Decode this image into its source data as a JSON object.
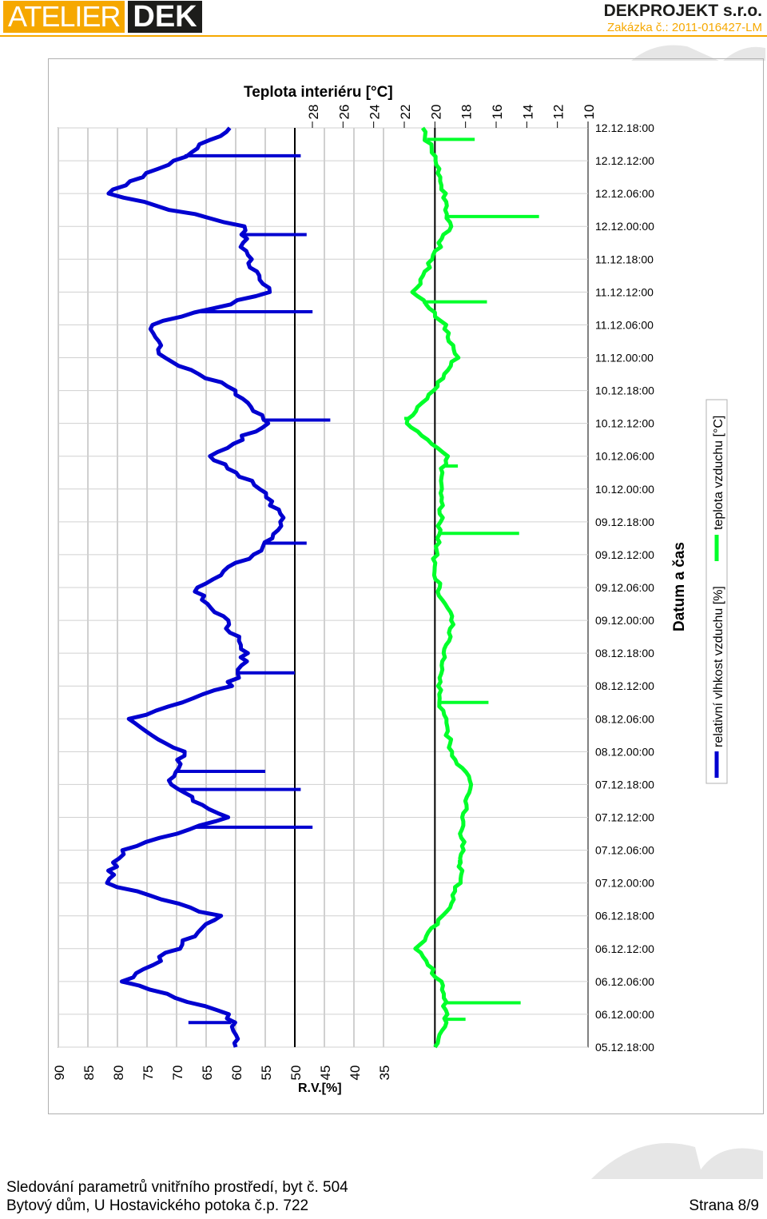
{
  "header": {
    "logo_left": "ATELIER",
    "logo_right": "DEK",
    "company": "DEKPROJEKT s.r.o.",
    "order_number": "Zakázka č.: 2011-016427-LM",
    "accent_color": "#f6a800",
    "dark_color": "#1d1d1b"
  },
  "footer": {
    "line1": "Sledování parametrů vnitřního prostředí, byt č. 504",
    "line2": "Bytový dům, U Hostavického potoka č.p. 722",
    "page": "Strana 8/9"
  },
  "chart_data": {
    "type": "line",
    "orientation": "rotated-90",
    "title": "Teplota interiéru [°C]",
    "xlabel": "Datum a čas",
    "ylabel_left": "R.V.[%]",
    "categories": [
      "05.12.18:00",
      "06.12.00:00",
      "06.12.06:00",
      "06.12.12:00",
      "06.12.18:00",
      "07.12.00:00",
      "07.12.06:00",
      "07.12.12:00",
      "07.12.18:00",
      "08.12.00:00",
      "08.12.06:00",
      "08.12.12:00",
      "08.12.18:00",
      "09.12.00:00",
      "09.12.06:00",
      "09.12.12:00",
      "09.12.18:00",
      "10.12.00:00",
      "10.12.06:00",
      "10.12.12:00",
      "10.12.18:00",
      "11.12.00:00",
      "11.12.06:00",
      "11.12.12:00",
      "11.12.18:00",
      "12.12.00:00",
      "12.12.06:00",
      "12.12.12:00",
      "12.12.18:00"
    ],
    "rh_axis": {
      "ticks": [
        90,
        85,
        80,
        75,
        70,
        65,
        60,
        55,
        50,
        45,
        40,
        35
      ],
      "range": [
        90,
        35
      ]
    },
    "temp_axis": {
      "ticks": [
        28,
        26,
        24,
        22,
        20,
        18,
        16,
        14,
        12,
        10
      ],
      "range": [
        28,
        10
      ]
    },
    "reference_lines": {
      "rh": 50,
      "temperature": 20
    },
    "grid": true,
    "legend_position": "right",
    "series": [
      {
        "name": "relativní vlhkost vzduchu [%]",
        "axis": "rh",
        "color": "#0000d0",
        "values": [
          60,
          61,
          79,
          70,
          63,
          82,
          79,
          62,
          71,
          69,
          78,
          61,
          58,
          62,
          67,
          57,
          52,
          56,
          64,
          55,
          60,
          72,
          74,
          54,
          58,
          59,
          82,
          70,
          61
        ],
        "spikes": [
          [
            0.75,
            68
          ],
          [
            6.7,
            47
          ],
          [
            7.85,
            49
          ],
          [
            8.4,
            55
          ],
          [
            11.4,
            50
          ],
          [
            15.35,
            48
          ],
          [
            19.1,
            44
          ],
          [
            22.4,
            47
          ],
          [
            24.75,
            48
          ],
          [
            27.15,
            49
          ]
        ]
      },
      {
        "name": "teplota vzduchu [°C]",
        "axis": "temperature",
        "color": "#00ff2a",
        "values": [
          20.0,
          19.2,
          19.7,
          21.2,
          19.4,
          18.4,
          18.2,
          18.2,
          17.6,
          18.9,
          19.4,
          19.8,
          19.4,
          18.9,
          19.8,
          20.0,
          19.6,
          19.7,
          19.3,
          21.9,
          20.1,
          18.6,
          19.4,
          21.4,
          20.2,
          19.0,
          19.4,
          20.0,
          20.8
        ],
        "spikes": [
          [
            0.85,
            18.0
          ],
          [
            1.35,
            14.4
          ],
          [
            5.65,
            18.5
          ],
          [
            10.5,
            16.5
          ],
          [
            15.65,
            14.5
          ],
          [
            17.7,
            18.5
          ],
          [
            19.15,
            22.0
          ],
          [
            22.7,
            16.6
          ],
          [
            25.3,
            13.2
          ],
          [
            27.65,
            17.4
          ]
        ]
      }
    ]
  }
}
